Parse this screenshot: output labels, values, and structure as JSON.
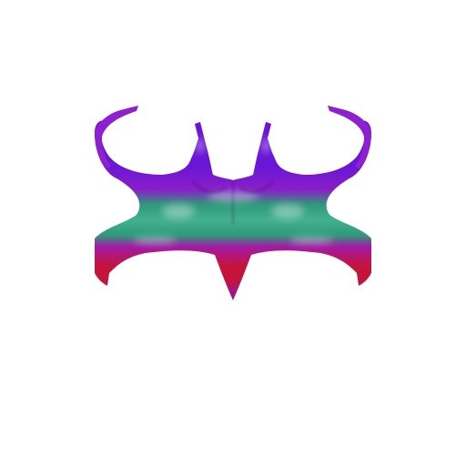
{
  "image": {
    "subject": "garment-texture",
    "background_color": "#ffffff"
  },
  "texture": {
    "gradient_colors": {
      "top_violet": "#6a16d6",
      "upper_purple": "#8a1ec8",
      "teal": "#2f9a7a",
      "teal_light": "#43b08e",
      "magenta": "#a21aa6",
      "crimson": "#c4143c",
      "bottom_purple": "#8a16b8"
    }
  }
}
